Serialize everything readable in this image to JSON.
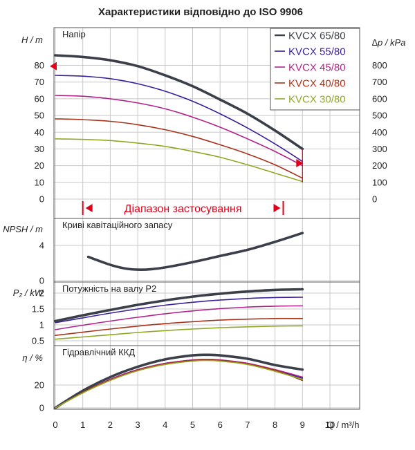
{
  "title": "Характеристики відповідно до ISO 9906",
  "colors": {
    "KVCX 65/80": "#3a3f4a",
    "KVCX 55/80": "#3a1f9a",
    "KVCX 45/80": "#b0238a",
    "KVCX 40/80": "#a8321a",
    "KVCX 30/80": "#8fa821",
    "marker": "#e0001a",
    "grid": "#c8c8c8",
    "frame": "#555555"
  },
  "legend": [
    "KVCX 65/80",
    "KVCX 55/80",
    "KVCX 45/80",
    "KVCX 40/80",
    "KVCX 30/80"
  ],
  "range_label": "Діапазон застосування",
  "xlabel": "Q / m³/h",
  "x_ticks": [
    0,
    1,
    2,
    3,
    4,
    5,
    6,
    7,
    8,
    9,
    10
  ],
  "x_tick_labels": [
    "0",
    "1",
    "2",
    "3",
    "4",
    "5",
    "6",
    "7",
    "8",
    "9",
    "10"
  ],
  "chart_data": [
    {
      "type": "line",
      "panel_label": "Напір",
      "ylabel": "H / m",
      "y2label": "∆p / kPa",
      "ylim": [
        0,
        90
      ],
      "y_ticks": [
        0,
        10,
        20,
        30,
        40,
        50,
        60,
        70,
        80
      ],
      "y2_ticks": [
        0,
        100,
        200,
        300,
        400,
        500,
        600,
        700,
        800
      ],
      "markers": [
        {
          "x": 0,
          "y": 79.5,
          "side": "left"
        },
        {
          "x": 9,
          "y": 21.5,
          "side": "right"
        }
      ],
      "series": [
        {
          "name": "KVCX 65/80",
          "x": [
            0,
            1,
            2,
            3,
            4,
            5,
            6,
            7,
            8,
            9
          ],
          "y": [
            86,
            85,
            83,
            79.5,
            74,
            67.5,
            59.5,
            51,
            41,
            30
          ]
        },
        {
          "name": "KVCX 55/80",
          "x": [
            0,
            1,
            2,
            3,
            4,
            5,
            6,
            7,
            8,
            9
          ],
          "y": [
            74,
            73.5,
            72,
            69,
            64.5,
            58.5,
            51,
            42.5,
            33,
            22.5
          ]
        },
        {
          "name": "KVCX 45/80",
          "x": [
            0,
            1,
            2,
            3,
            4,
            5,
            6,
            7,
            8,
            9
          ],
          "y": [
            62,
            61.5,
            60,
            57.5,
            54,
            49,
            43,
            36,
            28.5,
            20
          ]
        },
        {
          "name": "KVCX 40/80",
          "x": [
            0,
            1,
            2,
            3,
            4,
            5,
            6,
            7,
            8,
            9
          ],
          "y": [
            48,
            47.5,
            46.5,
            44.5,
            41.5,
            37.5,
            32.5,
            27,
            20.5,
            12.5
          ]
        },
        {
          "name": "KVCX 30/80",
          "x": [
            0,
            1,
            2,
            3,
            4,
            5,
            6,
            7,
            8,
            9
          ],
          "y": [
            36,
            35.7,
            35,
            33.5,
            31.5,
            28.5,
            25,
            20.5,
            15.5,
            10.5
          ]
        }
      ]
    },
    {
      "type": "line",
      "panel_label": "Криві кавітаційного запасу",
      "ylabel": "NPSH / m",
      "ylim": [
        0,
        7
      ],
      "y_ticks": [
        0,
        4
      ],
      "series": [
        {
          "name": "KVCX 65/80",
          "x": [
            1.2,
            2,
            2.5,
            3,
            3.5,
            4,
            5,
            6,
            7,
            8,
            9
          ],
          "y": [
            2.7,
            1.8,
            1.4,
            1.25,
            1.3,
            1.5,
            2.1,
            2.8,
            3.5,
            4.4,
            5.4
          ]
        }
      ]
    },
    {
      "type": "line",
      "panel_label": "Потужність на валу P2",
      "ylabel": "P₂ / kW",
      "ylim": [
        0.35,
        2.25
      ],
      "y_ticks": [
        0.5,
        1,
        1.5,
        2
      ],
      "y_tick_labels": [
        "0.5",
        "1",
        "1.5",
        "2"
      ],
      "series": [
        {
          "name": "KVCX 65/80",
          "x": [
            0,
            1,
            2,
            3,
            4,
            5,
            6,
            7,
            8,
            9
          ],
          "y": [
            1.12,
            1.3,
            1.47,
            1.63,
            1.77,
            1.89,
            1.98,
            2.05,
            2.1,
            2.12
          ]
        },
        {
          "name": "KVCX 55/80",
          "x": [
            0,
            1,
            2,
            3,
            4,
            5,
            6,
            7,
            8,
            9
          ],
          "y": [
            1.07,
            1.22,
            1.37,
            1.5,
            1.62,
            1.71,
            1.78,
            1.83,
            1.86,
            1.87
          ]
        },
        {
          "name": "KVCX 45/80",
          "x": [
            0,
            1,
            2,
            3,
            4,
            5,
            6,
            7,
            8,
            9
          ],
          "y": [
            0.85,
            0.99,
            1.12,
            1.24,
            1.35,
            1.44,
            1.51,
            1.56,
            1.59,
            1.6
          ]
        },
        {
          "name": "KVCX 40/80",
          "x": [
            0,
            1,
            2,
            3,
            4,
            5,
            6,
            7,
            8,
            9
          ],
          "y": [
            0.67,
            0.77,
            0.87,
            0.96,
            1.04,
            1.1,
            1.15,
            1.18,
            1.2,
            1.2
          ]
        },
        {
          "name": "KVCX 30/80",
          "x": [
            0,
            1,
            2,
            3,
            4,
            5,
            6,
            7,
            8,
            9
          ],
          "y": [
            0.55,
            0.62,
            0.69,
            0.76,
            0.82,
            0.87,
            0.91,
            0.94,
            0.96,
            0.97
          ]
        }
      ]
    },
    {
      "type": "line",
      "panel_label": "Гідравлічний ККД",
      "ylabel": "η / %",
      "ylim": [
        0,
        52
      ],
      "y_ticks": [
        0,
        20
      ],
      "series": [
        {
          "name": "KVCX 65/80",
          "x": [
            0,
            1,
            2,
            3,
            4,
            5,
            5.5,
            6,
            7,
            8,
            9
          ],
          "y": [
            0,
            15,
            27,
            36,
            42.5,
            46,
            46.5,
            46,
            43,
            37.5,
            33.5
          ]
        },
        {
          "name": "KVCX 55/80",
          "x": [
            0,
            1,
            2,
            3,
            4,
            5,
            5.5,
            6,
            7,
            8,
            9
          ],
          "y": [
            0,
            13.5,
            25,
            33.5,
            39,
            42,
            42.5,
            42,
            39,
            33,
            26
          ]
        },
        {
          "name": "KVCX 45/80",
          "x": [
            0,
            1,
            2,
            3,
            4,
            5,
            5.5,
            6,
            7,
            8,
            9
          ],
          "y": [
            0,
            13.5,
            25,
            33.5,
            39,
            42,
            42.5,
            42,
            39,
            33.5,
            27
          ]
        },
        {
          "name": "KVCX 40/80",
          "x": [
            0,
            1,
            2,
            3,
            4,
            5,
            5.5,
            6,
            7,
            8,
            9
          ],
          "y": [
            0,
            13.5,
            24.5,
            33,
            38.5,
            41.5,
            42,
            41.5,
            38.5,
            33,
            24
          ]
        },
        {
          "name": "KVCX 30/80",
          "x": [
            0,
            1,
            2,
            3,
            4,
            5,
            5.5,
            6,
            7,
            8,
            9
          ],
          "y": [
            0,
            13,
            24,
            32.5,
            38,
            41,
            41.5,
            41,
            38,
            32,
            25
          ]
        }
      ]
    }
  ]
}
